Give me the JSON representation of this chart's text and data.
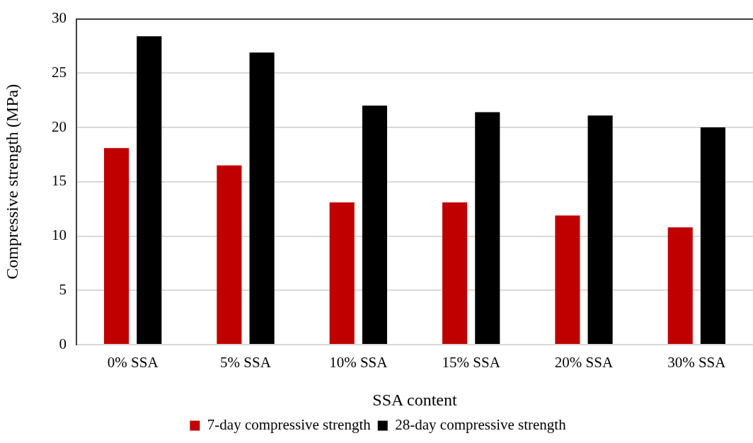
{
  "chart_data": {
    "type": "bar",
    "xlabel": "SSA content",
    "ylabel": "Compressive strength (MPa)",
    "categories": [
      "0% SSA",
      "5% SSA",
      "10% SSA",
      "15% SSA",
      "20% SSA",
      "30% SSA"
    ],
    "series": [
      {
        "name": "7-day compressive strength",
        "color": "#c00000",
        "values": [
          18.1,
          16.5,
          13.1,
          13.1,
          11.9,
          10.8
        ]
      },
      {
        "name": "28-day compressive strength",
        "color": "#000000",
        "values": [
          28.4,
          26.9,
          22.0,
          21.4,
          21.1,
          20.0
        ]
      }
    ],
    "ylim": [
      0,
      30
    ],
    "yticks": [
      0,
      5,
      10,
      15,
      20,
      25,
      30
    ],
    "grid": "y",
    "legend": "bottom"
  }
}
